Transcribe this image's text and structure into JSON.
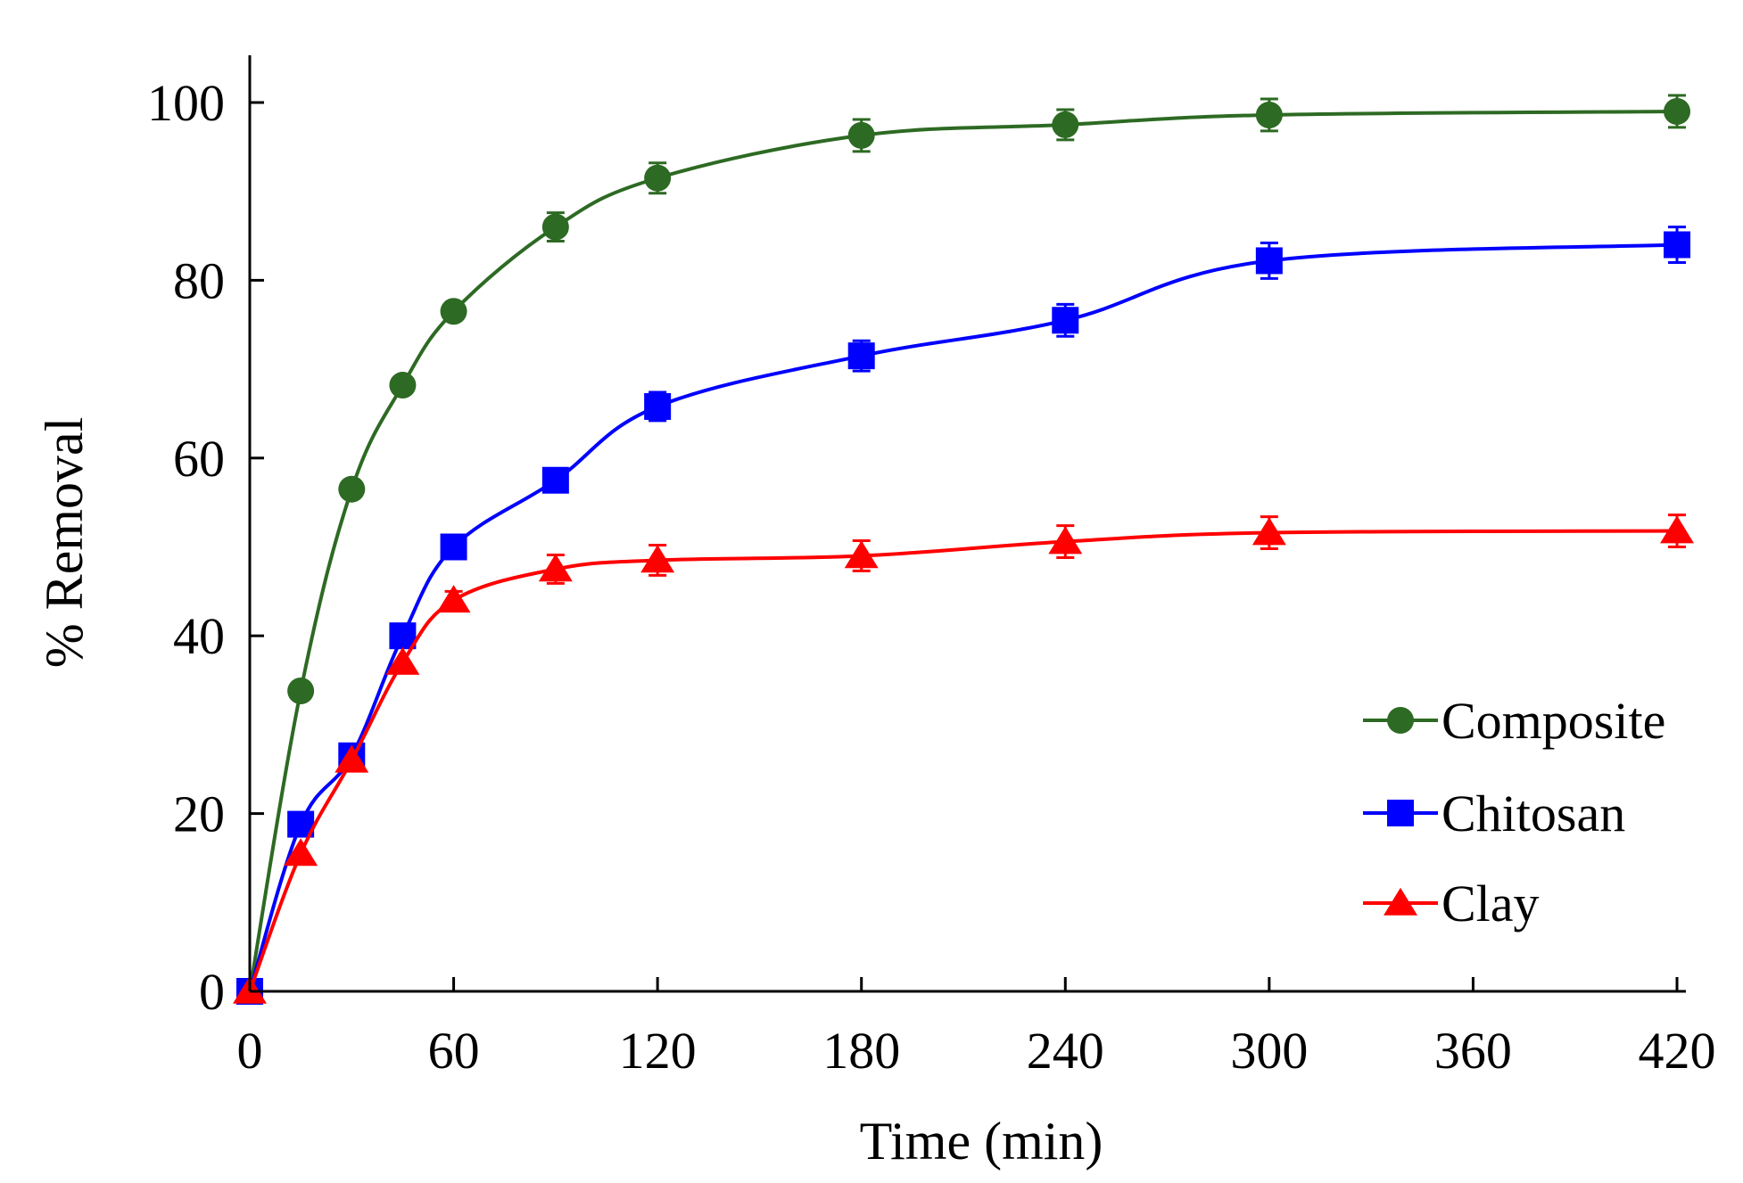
{
  "chart_data": {
    "type": "line",
    "title": "",
    "xlabel": "Time (min)",
    "ylabel": "% Removal",
    "xlim": [
      0,
      420
    ],
    "ylim": [
      0,
      100
    ],
    "xticks": [
      0,
      60,
      120,
      180,
      240,
      300,
      360,
      420
    ],
    "yticks": [
      0,
      20,
      40,
      60,
      80,
      100
    ],
    "grid": false,
    "legend_position": "right",
    "x": [
      0,
      15,
      30,
      45,
      60,
      90,
      120,
      180,
      240,
      300,
      420
    ],
    "series": [
      {
        "name": "Composite",
        "color": "#2d6a23",
        "marker": "circle",
        "values": [
          0,
          33.8,
          56.5,
          68.2,
          76.5,
          86.0,
          91.5,
          96.3,
          97.5,
          98.6,
          99.0
        ],
        "errors": [
          0,
          0,
          0,
          0,
          0,
          1.6,
          1.7,
          1.8,
          1.7,
          1.8,
          1.8
        ]
      },
      {
        "name": "Chitosan",
        "color": "#0000ff",
        "marker": "square",
        "values": [
          0,
          18.8,
          26.5,
          40.0,
          50.0,
          57.5,
          65.8,
          71.5,
          75.5,
          82.2,
          84.0
        ],
        "errors": [
          0,
          0,
          0,
          0,
          0,
          0,
          1.6,
          1.7,
          1.8,
          2.0,
          2.0
        ]
      },
      {
        "name": "Clay",
        "color": "#ff0000",
        "marker": "triangle",
        "values": [
          0,
          15.5,
          26.0,
          37.0,
          44.0,
          47.5,
          48.5,
          49.0,
          50.6,
          51.6,
          51.8
        ],
        "errors": [
          0,
          0,
          0,
          0,
          1.0,
          1.6,
          1.7,
          1.7,
          1.8,
          1.8,
          1.8
        ]
      }
    ]
  }
}
